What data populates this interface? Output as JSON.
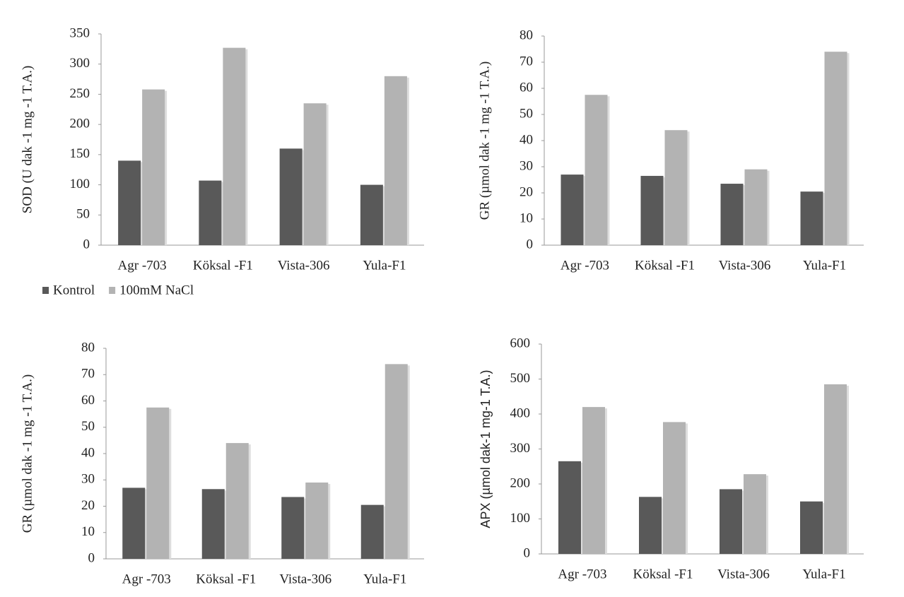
{
  "chart_data": [
    {
      "type": "bar",
      "y_label": "SOD  (U dak -1 mg -1 T.A.)",
      "categories": [
        "Agr -703",
        "Köksal -F1",
        "Vista-306",
        "Yula-F1"
      ],
      "series": [
        {
          "name": "Kontrol",
          "color": "#595959",
          "values": [
            140,
            107,
            160,
            100
          ]
        },
        {
          "name": "100mM NaCl",
          "color": "#b3b3b3",
          "values": [
            258,
            327,
            235,
            280
          ]
        }
      ],
      "ylim": [
        0,
        350
      ],
      "yticks": [
        0,
        50,
        100,
        150,
        200,
        250,
        300,
        350
      ]
    },
    {
      "type": "bar",
      "y_label": "GR (µmol dak -1 mg -1 T.A.)",
      "categories": [
        "Agr -703",
        "Köksal -F1",
        "Vista-306",
        "Yula-F1"
      ],
      "series": [
        {
          "color": "#595959",
          "values": [
            27,
            26.5,
            23.5,
            20.5
          ]
        },
        {
          "color": "#b3b3b3",
          "values": [
            57.5,
            44,
            29,
            74
          ]
        }
      ],
      "ylim": [
        0,
        80
      ],
      "yticks": [
        0,
        10,
        20,
        30,
        40,
        50,
        60,
        70,
        80
      ]
    },
    {
      "type": "bar",
      "y_label": "GR (µmol dak -1 mg -1 T.A.)",
      "categories": [
        "Agr -703",
        "Köksal -F1",
        "Vista-306",
        "Yula-F1"
      ],
      "series": [
        {
          "color": "#595959",
          "values": [
            27,
            26.5,
            23.5,
            20.5
          ]
        },
        {
          "color": "#b3b3b3",
          "values": [
            57.5,
            44,
            29,
            74
          ]
        }
      ],
      "ylim": [
        0,
        80
      ],
      "yticks": [
        0,
        10,
        20,
        30,
        40,
        50,
        60,
        70,
        80
      ]
    },
    {
      "type": "bar",
      "y_label": "APX  (µmol dak-1  mg-1 T.A.)",
      "categories": [
        "Agr -703",
        "Köksal -F1",
        "Vista-306",
        "Yula-F1"
      ],
      "series": [
        {
          "color": "#595959",
          "values": [
            265,
            163,
            185,
            150
          ]
        },
        {
          "color": "#b3b3b3",
          "values": [
            420,
            377,
            228,
            485
          ]
        }
      ],
      "ylim": [
        0,
        600
      ],
      "yticks": [
        0,
        100,
        200,
        300,
        400,
        500,
        600
      ]
    }
  ]
}
